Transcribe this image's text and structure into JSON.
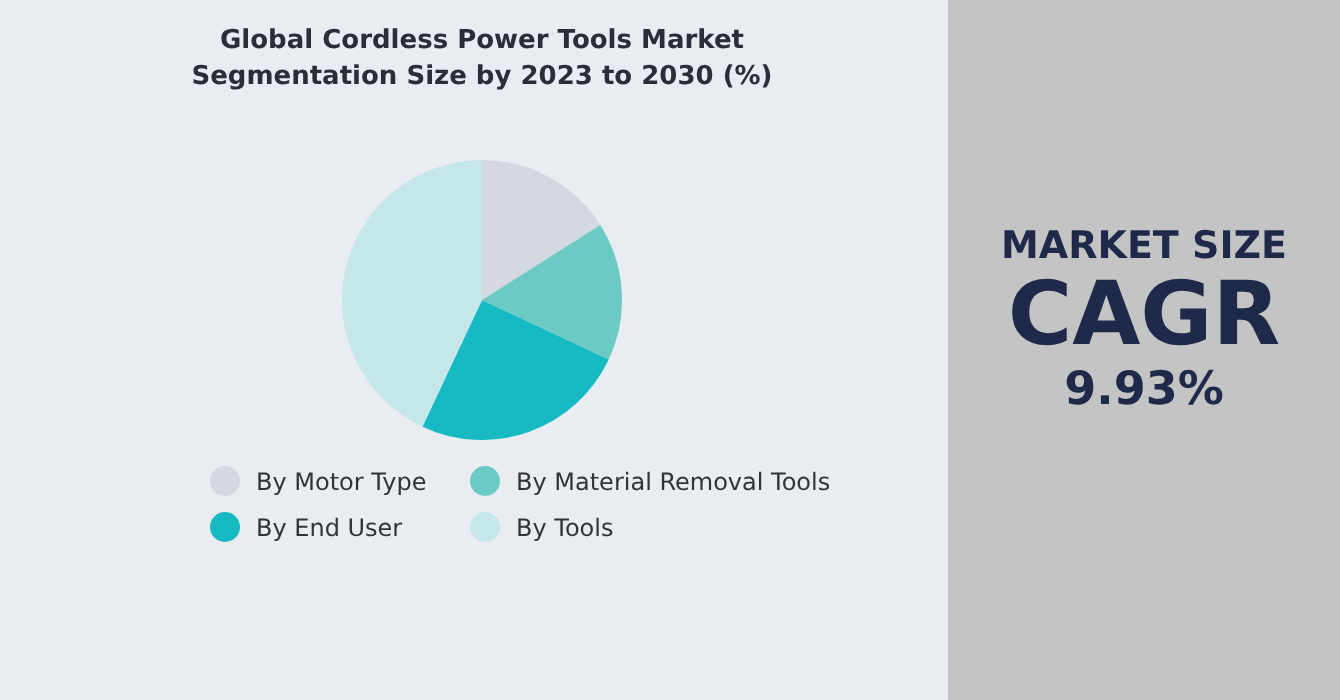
{
  "chart_data": [
    {
      "type": "pie",
      "title": "Global Cordless Power Tools Market Segmentation Size by 2023 to 2030 (%)",
      "categories": [
        "By Motor Type",
        "By Material Removal Tools",
        "By End User",
        "By Tools"
      ],
      "values": [
        16,
        16,
        25,
        43
      ],
      "colors": [
        "#d3d9df",
        "#6ccac4",
        "#17bac3",
        "#c5e7ea"
      ],
      "legend": "bottom"
    },
    {
      "type": "other",
      "title": "MARKET SIZE",
      "subtitle": "CAGR",
      "annotations": [
        "9.93%"
      ]
    }
  ]
}
